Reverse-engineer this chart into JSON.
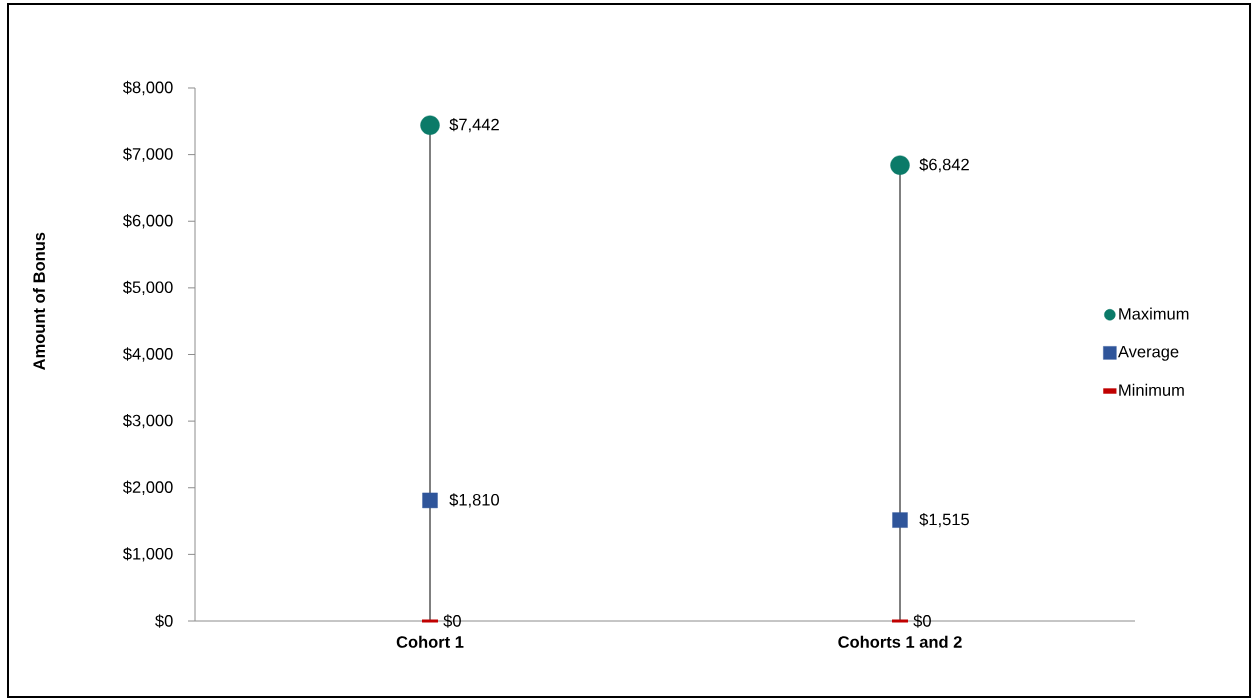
{
  "chart_data": {
    "type": "scatter",
    "ylabel": "Amount of Bonus",
    "categories": [
      "Cohort 1",
      "Cohorts 1 and 2"
    ],
    "series": [
      {
        "name": "Maximum",
        "type": "lollipop",
        "color": "#0b7a68",
        "marker": "circle",
        "values": [
          7442,
          6842
        ],
        "value_labels": [
          "$7,442",
          "$6,842"
        ]
      },
      {
        "name": "Average",
        "color": "#2f559a",
        "marker": "square",
        "values": [
          1810,
          1515
        ],
        "value_labels": [
          "$1,810",
          "$1,515"
        ]
      },
      {
        "name": "Minimum",
        "type": "bar",
        "color": "#c00000",
        "values": [
          0,
          0
        ],
        "value_labels": [
          "$0",
          "$0"
        ]
      }
    ],
    "ylim": [
      0,
      8000
    ],
    "yticks": [
      {
        "value": 0,
        "label": "$0"
      },
      {
        "value": 1000,
        "label": "$1,000"
      },
      {
        "value": 2000,
        "label": "$2,000"
      },
      {
        "value": 3000,
        "label": "$3,000"
      },
      {
        "value": 4000,
        "label": "$4,000"
      },
      {
        "value": 5000,
        "label": "$5,000"
      },
      {
        "value": 6000,
        "label": "$6,000"
      },
      {
        "value": 7000,
        "label": "$7,000"
      },
      {
        "value": 8000,
        "label": "$8,000"
      }
    ],
    "legend": "right"
  }
}
